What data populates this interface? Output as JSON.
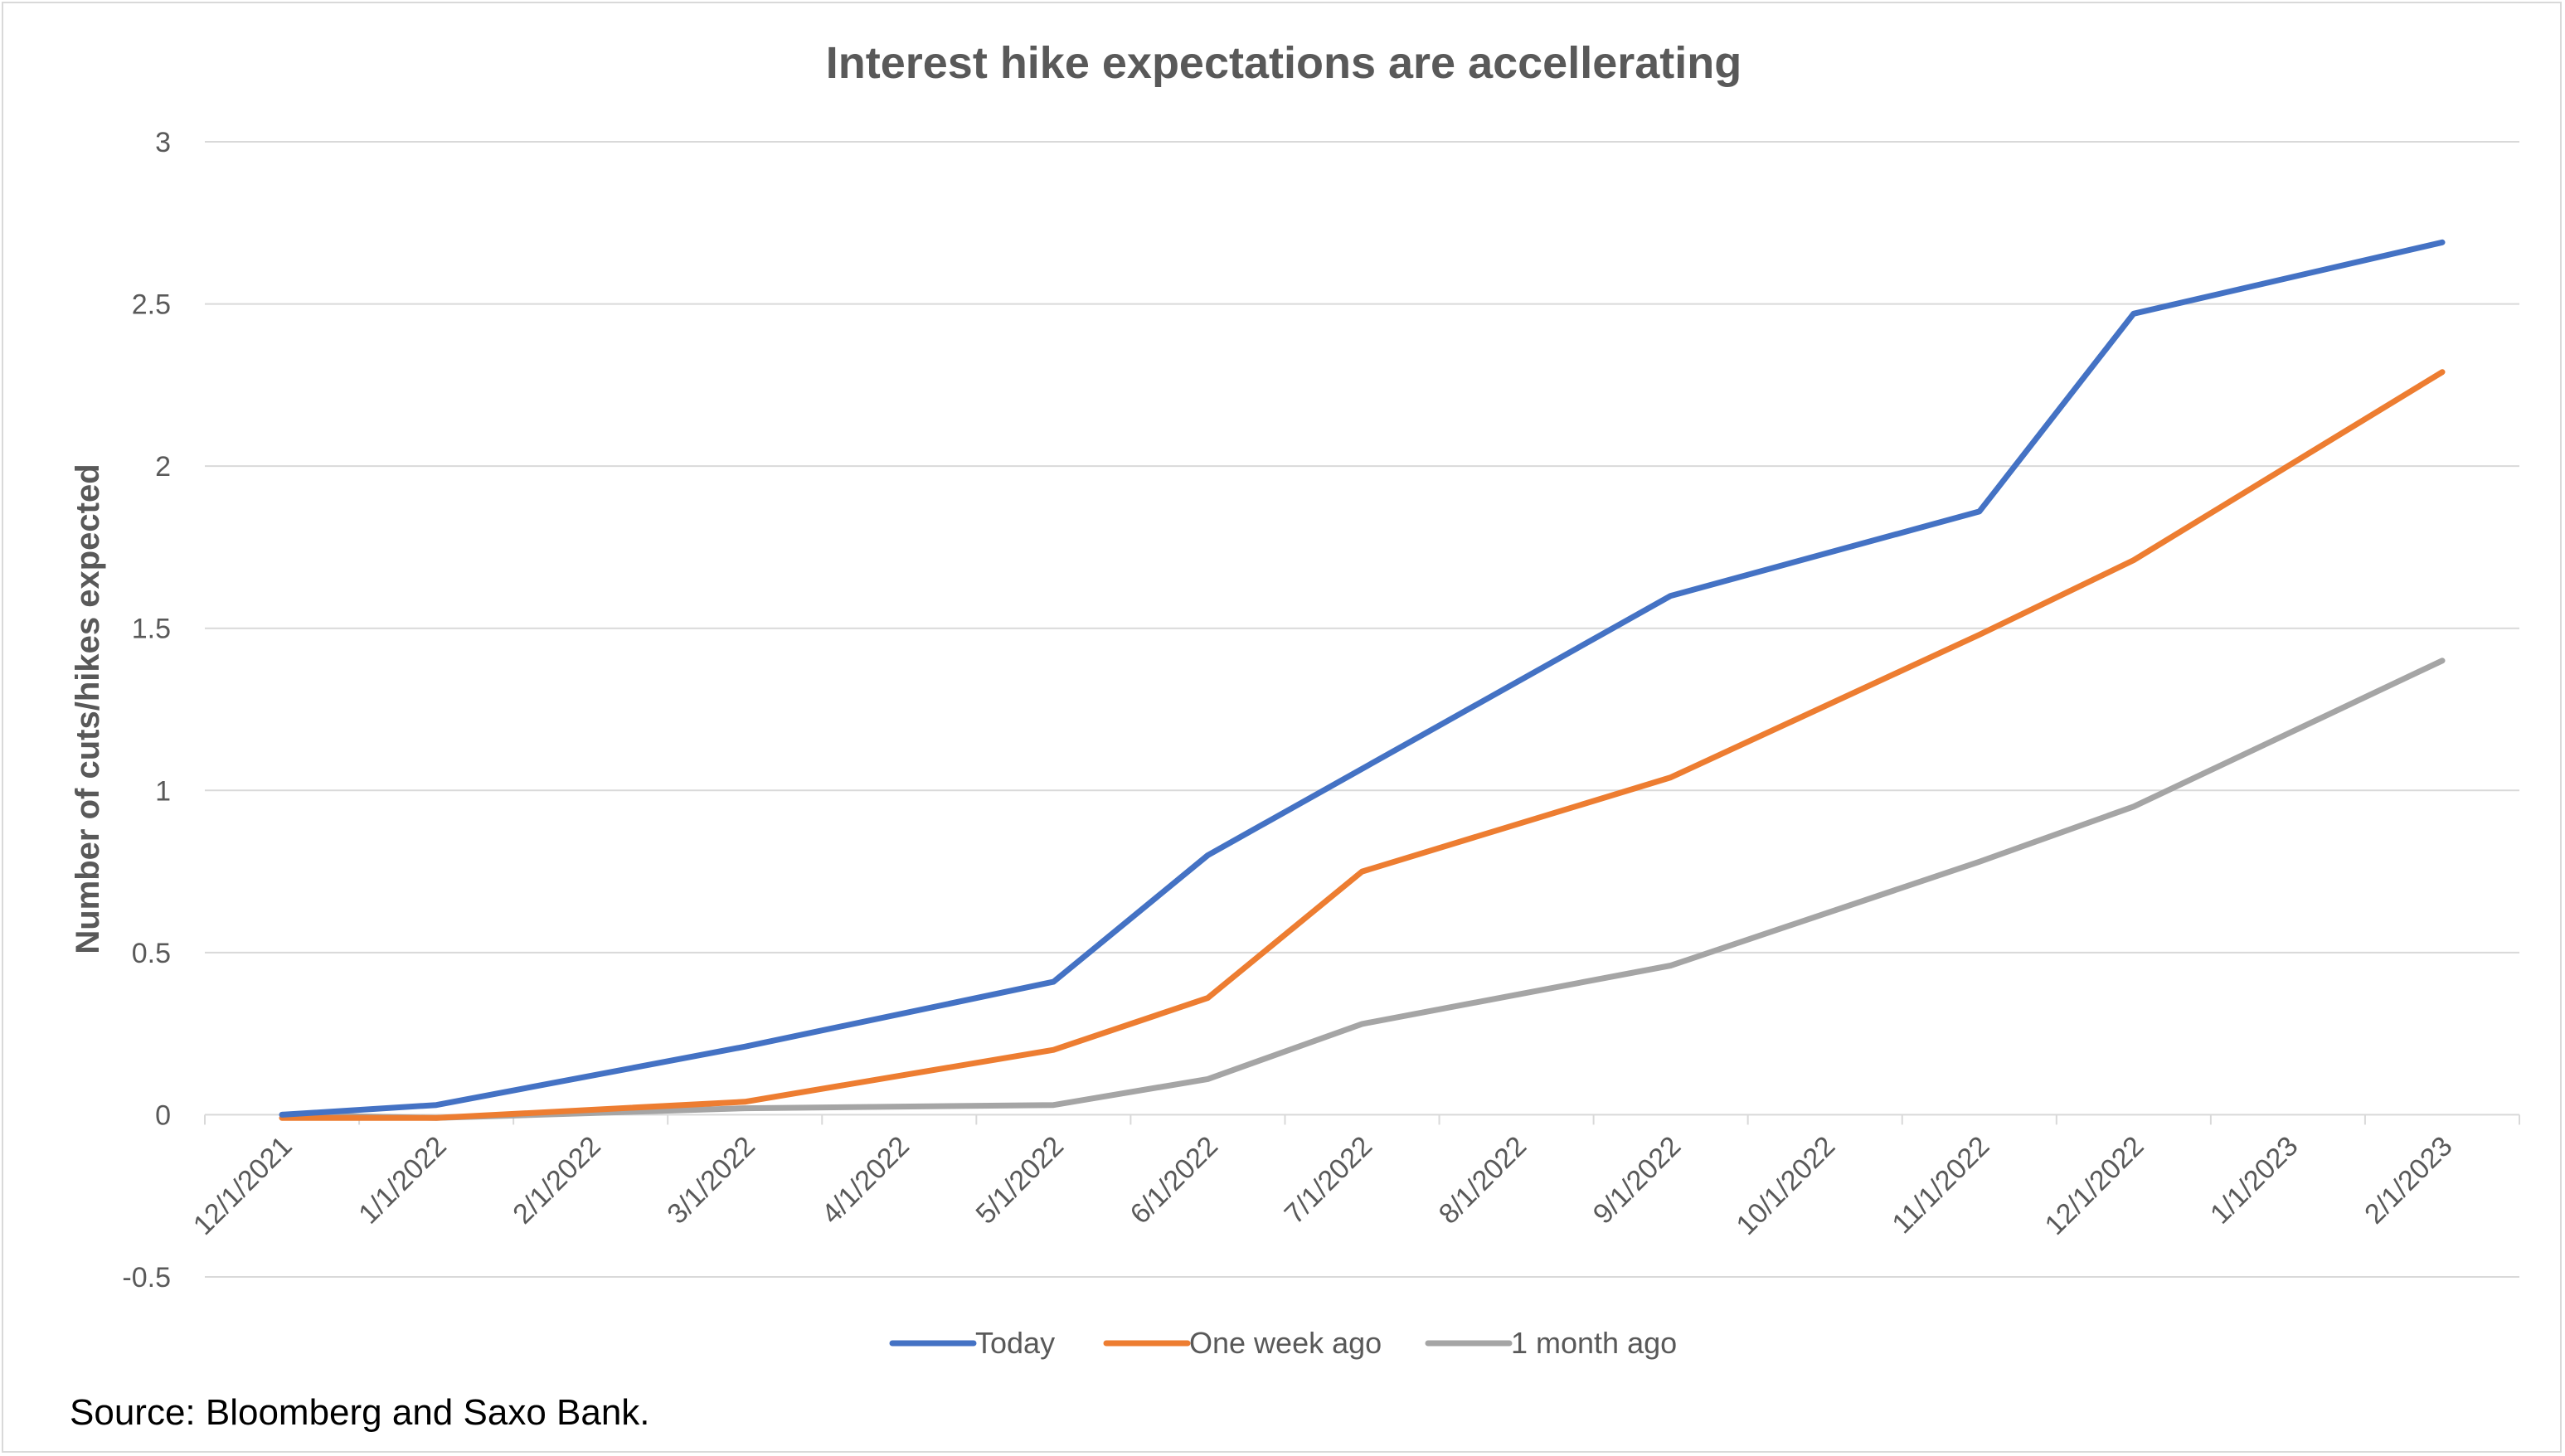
{
  "chart_data": {
    "type": "line",
    "title": "Interest hike expectations are accellerating",
    "ylabel": "Number of cuts/hikes expected",
    "xlabel": "",
    "x": [
      "12/1/2021",
      "1/1/2022",
      "2/1/2022",
      "3/1/2022",
      "4/1/2022",
      "5/1/2022",
      "6/1/2022",
      "7/1/2022",
      "8/1/2022",
      "9/1/2022",
      "10/1/2022",
      "11/1/2022",
      "12/1/2022",
      "1/1/2023",
      "2/1/2023"
    ],
    "yticks": [
      "-0.5",
      "0",
      "0.5",
      "1",
      "1.5",
      "2",
      "2.5",
      "3"
    ],
    "ylim": [
      -0.5,
      3
    ],
    "grid": true,
    "legend_position": "bottom",
    "series": [
      {
        "name": "Today",
        "color": "#4472C4",
        "values": [
          0,
          0.03,
          null,
          0.21,
          null,
          0.41,
          0.8,
          null,
          null,
          1.6,
          null,
          1.86,
          2.47,
          null,
          2.69
        ]
      },
      {
        "name": "One week ago",
        "color": "#ED7D31",
        "values": [
          -0.01,
          -0.01,
          null,
          0.04,
          null,
          0.2,
          0.36,
          0.75,
          null,
          1.04,
          null,
          1.48,
          1.71,
          null,
          2.29
        ]
      },
      {
        "name": "1 month ago",
        "color": "#A5A5A5",
        "values": [
          0,
          -0.01,
          null,
          0.02,
          null,
          0.03,
          0.11,
          0.28,
          null,
          0.46,
          null,
          0.78,
          0.95,
          null,
          1.4
        ]
      }
    ]
  },
  "source_note": "Source: Bloomberg and Saxo Bank."
}
